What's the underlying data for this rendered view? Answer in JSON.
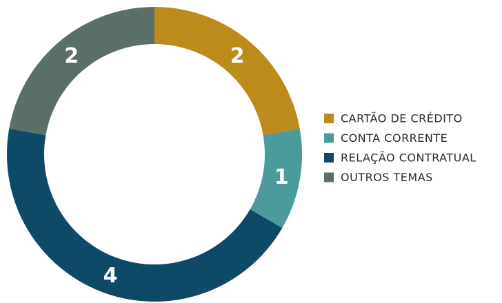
{
  "chart_data": {
    "type": "donut",
    "categories": [
      "CARTÃO DE CRÉDITO",
      "CONTA CORRENTE",
      "RELAÇÃO CONTRATUAL",
      "OUTROS TEMAS"
    ],
    "values": [
      2,
      1,
      4,
      2
    ],
    "colors": [
      "#bd8a1c",
      "#4b9a9c",
      "#0e4a67",
      "#5b6f69"
    ],
    "legend": "right"
  }
}
